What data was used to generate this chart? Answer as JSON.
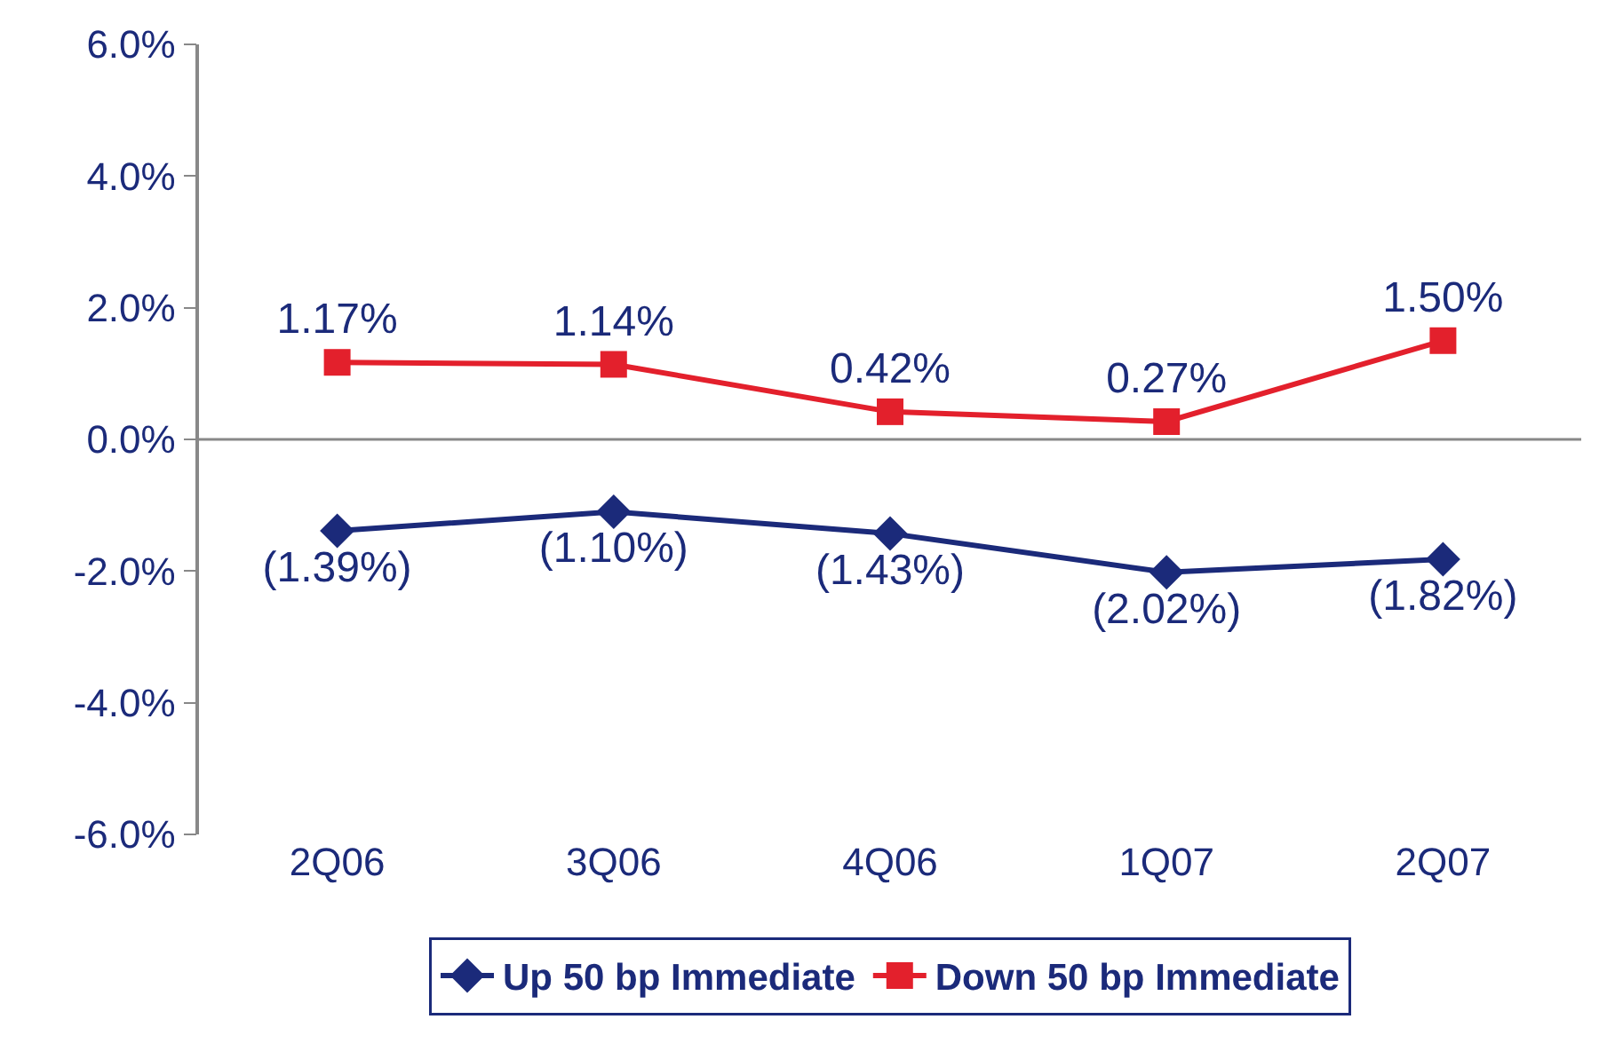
{
  "chart_data": {
    "type": "line",
    "categories": [
      "2Q06",
      "3Q06",
      "4Q06",
      "1Q07",
      "2Q07"
    ],
    "series": [
      {
        "name": "Up 50 bp Immediate",
        "color": "#1b2a7a",
        "marker": "diamond",
        "values": [
          -1.39,
          -1.1,
          -1.43,
          -2.02,
          -1.82
        ],
        "value_labels": [
          "(1.39%)",
          "(1.10%)",
          "(1.43%)",
          "(2.02%)",
          "(1.82%)"
        ]
      },
      {
        "name": "Down 50 bp Immediate",
        "color": "#e3202c",
        "marker": "square",
        "values": [
          1.17,
          1.14,
          0.42,
          0.27,
          1.5
        ],
        "value_labels": [
          "1.17%",
          "1.14%",
          "0.42%",
          "0.27%",
          "1.50%"
        ]
      }
    ],
    "ylim": [
      -6,
      6
    ],
    "yticks": [
      {
        "value": -6,
        "label": "-6.0%"
      },
      {
        "value": -4,
        "label": "-4.0%"
      },
      {
        "value": -2,
        "label": "-2.0%"
      },
      {
        "value": 0,
        "label": "0.0%"
      },
      {
        "value": 2,
        "label": "2.0%"
      },
      {
        "value": 4,
        "label": "4.0%"
      },
      {
        "value": 6,
        "label": "6.0%"
      }
    ],
    "ref_lines": [
      {
        "axis": "y",
        "value": 0,
        "color": "#888888"
      }
    ],
    "grid": false,
    "legend": "bottom",
    "line_style": "solid"
  }
}
